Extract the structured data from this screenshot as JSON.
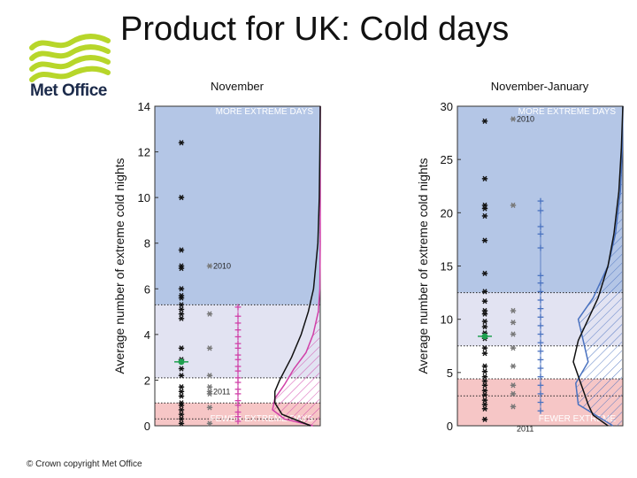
{
  "page": {
    "title": "Product for UK: Cold days",
    "footer": "© Crown copyright   Met Office",
    "logo_text": "Met Office"
  },
  "colors": {
    "more_extreme_band": "#b4c6e6",
    "mid_band": "#e2e3f2",
    "white_band": "#ffffff",
    "fewer_extreme_band": "#f6c6c6",
    "observed_marker": "#111111",
    "ensemble_marker": "#777777",
    "model_marker_november": "#d040a8",
    "model_marker_nov_jan": "#4a72c0",
    "mean_marker": "#20a050",
    "logo_green": "#b7d62a"
  },
  "chart_data": [
    {
      "type": "scatter",
      "title": "November",
      "ylabel": "Average number of extreme cold nights",
      "ylim": [
        0,
        14
      ],
      "yticks": [
        0,
        2,
        4,
        6,
        8,
        10,
        12,
        14
      ],
      "zone_labels": {
        "top": "MORE EXTREME DAYS",
        "bottom": "FEWER EXTREME DAYS"
      },
      "bands": [
        {
          "from": 5.3,
          "to": 14,
          "color": "#b4c6e6"
        },
        {
          "from": 2.1,
          "to": 5.3,
          "color": "#e2e3f2"
        },
        {
          "from": 1.0,
          "to": 2.1,
          "color": "#ffffff"
        },
        {
          "from": 0,
          "to": 1.0,
          "color": "#f6c6c6"
        }
      ],
      "dotted_lines": [
        5.3,
        2.1,
        1.0,
        0.3
      ],
      "observed": [
        12.4,
        10.0,
        7.7,
        7.0,
        6.9,
        6.0,
        5.7,
        5.6,
        5.3,
        5.1,
        4.9,
        4.7,
        3.4,
        2.9,
        2.5,
        2.2,
        1.7,
        1.5,
        1.3,
        1.0,
        0.9,
        0.7,
        0.5,
        0.3,
        0.1
      ],
      "observed_mean": 2.8,
      "ensemble": [
        7.0,
        4.9,
        3.4,
        2.2,
        1.7,
        1.5,
        1.4,
        0.8,
        0.1
      ],
      "ensemble_year_labels": [
        {
          "year": "2010",
          "value": 7.0
        },
        {
          "year": "2011",
          "value": 1.5
        }
      ],
      "model": [
        5.2,
        4.8,
        4.5,
        4.2,
        3.9,
        3.6,
        3.4,
        3.1,
        2.9,
        2.6,
        2.4,
        2.1,
        1.9,
        1.6,
        1.4,
        1.1,
        0.9,
        0.6,
        0.4,
        0.2
      ],
      "model_color": "#d040a8",
      "density_observed": [
        [
          0,
          0.2
        ],
        [
          0.5,
          0.8
        ],
        [
          1,
          0.95
        ],
        [
          1.5,
          0.95
        ],
        [
          2,
          0.85
        ],
        [
          3,
          0.6
        ],
        [
          4,
          0.4
        ],
        [
          5,
          0.25
        ],
        [
          6,
          0.14
        ],
        [
          8,
          0.05
        ],
        [
          10,
          0.02
        ],
        [
          12,
          0.01
        ],
        [
          14,
          0
        ]
      ],
      "density_model": [
        [
          0,
          0.15
        ],
        [
          0.3,
          0.75
        ],
        [
          0.7,
          1.0
        ],
        [
          1.2,
          0.95
        ],
        [
          1.8,
          0.75
        ],
        [
          2.5,
          0.55
        ],
        [
          3.2,
          0.3
        ],
        [
          4,
          0.15
        ],
        [
          5,
          0.04
        ],
        [
          6,
          0.01
        ],
        [
          8,
          0
        ],
        [
          14,
          0
        ]
      ]
    },
    {
      "type": "scatter",
      "title": "November-January",
      "ylabel": "Average number of extreme cold nights",
      "ylim": [
        0,
        30
      ],
      "yticks": [
        0,
        5,
        10,
        15,
        20,
        25,
        30
      ],
      "zone_labels": {
        "top": "MORE EXTREME DAYS",
        "bottom": "FEWER EXTREME"
      },
      "bands": [
        {
          "from": 12.5,
          "to": 30,
          "color": "#b4c6e6"
        },
        {
          "from": 7.5,
          "to": 12.5,
          "color": "#e2e3f2"
        },
        {
          "from": 4.4,
          "to": 7.5,
          "color": "#ffffff"
        },
        {
          "from": 0,
          "to": 4.4,
          "color": "#f6c6c6"
        }
      ],
      "dotted_lines": [
        12.5,
        7.5,
        4.4,
        2.8
      ],
      "observed": [
        28.6,
        23.2,
        20.7,
        20.4,
        19.7,
        17.4,
        14.3,
        12.6,
        11.7,
        10.8,
        10.5,
        9.8,
        9.3,
        8.7,
        8.2,
        7.3,
        6.8,
        5.6,
        5.1,
        4.6,
        4.2,
        3.8,
        3.3,
        2.9,
        2.4,
        2.0,
        1.6,
        0.6
      ],
      "observed_mean": 8.4,
      "ensemble": [
        28.8,
        20.7,
        10.8,
        9.7,
        8.6,
        7.3,
        5.6,
        3.8,
        3.0,
        1.8
      ],
      "ensemble_year_labels": [
        {
          "year": "2010",
          "value": 28.8
        },
        {
          "year": "2011",
          "value": -0.3
        }
      ],
      "model": [
        21.1,
        20.2,
        18.7,
        18.0,
        16.7,
        14.1,
        13.4,
        12.6,
        11.8,
        11.0,
        10.2,
        9.4,
        8.6,
        7.8,
        7.0,
        6.2,
        5.4,
        4.6,
        3.8,
        3.0,
        2.2,
        1.4
      ],
      "model_color": "#4a72c0",
      "density_observed": [
        [
          0,
          0.3
        ],
        [
          1,
          0.6
        ],
        [
          2,
          0.7
        ],
        [
          4,
          0.85
        ],
        [
          6,
          1.0
        ],
        [
          8,
          0.9
        ],
        [
          10,
          0.7
        ],
        [
          12,
          0.5
        ],
        [
          15,
          0.3
        ],
        [
          18,
          0.18
        ],
        [
          22,
          0.08
        ],
        [
          26,
          0.03
        ],
        [
          30,
          0
        ]
      ],
      "density_model": [
        [
          0,
          0.2
        ],
        [
          2,
          0.9
        ],
        [
          4,
          0.95
        ],
        [
          6,
          0.7
        ],
        [
          8,
          0.8
        ],
        [
          10,
          0.9
        ],
        [
          12,
          0.6
        ],
        [
          15,
          0.3
        ],
        [
          18,
          0.15
        ],
        [
          22,
          0.05
        ],
        [
          26,
          0.01
        ],
        [
          30,
          0
        ]
      ]
    }
  ]
}
